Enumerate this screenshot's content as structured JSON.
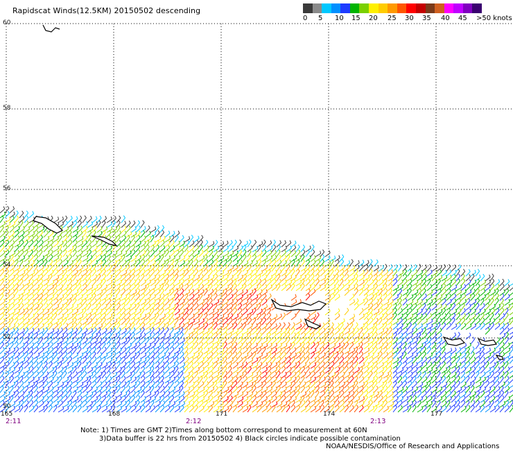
{
  "title": "Rapidscat Winds(12.5KM) 20150502 descending",
  "legend": {
    "labels": [
      "0",
      "5",
      "10",
      "15",
      "20",
      "25",
      "30",
      "35",
      "40",
      "45",
      ">50 knots"
    ],
    "colors": [
      "#3a3a3a",
      "#8a8a8a",
      "#00c8ff",
      "#0090ff",
      "#1d3bff",
      "#00b400",
      "#7ad000",
      "#fff000",
      "#ffcc00",
      "#ff9900",
      "#ff5500",
      "#ff0000",
      "#c40000",
      "#7a3a1a",
      "#d06020",
      "#ff00ff",
      "#c000ff",
      "#8000c0",
      "#3a0070"
    ]
  },
  "lat_labels": [
    "60",
    "58",
    "56",
    "54",
    "52",
    "50"
  ],
  "lon_labels": [
    "165",
    "168",
    "171",
    "174",
    "177"
  ],
  "time_labels": [
    "2:11",
    "2:12",
    "2:13"
  ],
  "notes": {
    "line1": "Note: 1) Times are GMT 2)Times along bottom correspond to measurement at 60N",
    "line2": "3)Data buffer is 22 hrs from 20150502 4) Black circles indicate possible contamination",
    "line3": "NOAA/NESDIS/Office of Research and Applications"
  }
}
